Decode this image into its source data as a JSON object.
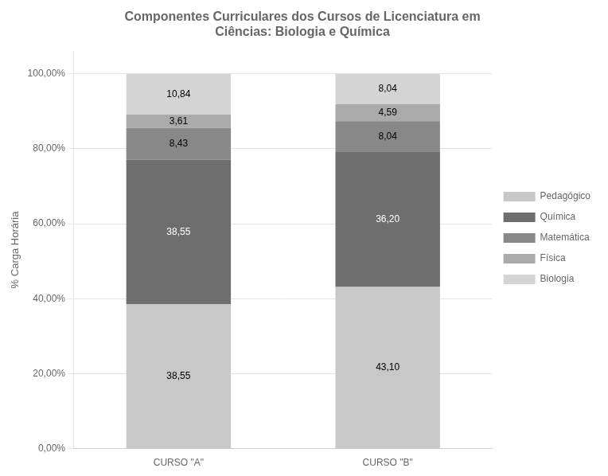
{
  "chart_data": {
    "type": "bar",
    "stacked": true,
    "title": "Componentes Curriculares dos Cursos de Licenciatura em\nCiências: Biologia e Química",
    "y_label": "% Carga Horária",
    "categories": [
      "CURSO \"A\"",
      "CURSO \"B\""
    ],
    "series": [
      {
        "name": "Pedagógico",
        "color": "#c8c8c8",
        "values": [
          38.55,
          43.1
        ],
        "value_labels": [
          "38,55",
          "43,10"
        ]
      },
      {
        "name": "Química",
        "color": "#6e6e6e",
        "values": [
          38.55,
          36.2
        ],
        "value_labels": [
          "38,55",
          "36,20"
        ]
      },
      {
        "name": "Matemática",
        "color": "#888888",
        "values": [
          8.43,
          8.04
        ],
        "value_labels": [
          "8,43",
          "8,04"
        ]
      },
      {
        "name": "Física",
        "color": "#aaaaaa",
        "values": [
          3.61,
          4.59
        ],
        "value_labels": [
          "3,61",
          "4,59"
        ]
      },
      {
        "name": "Biologia",
        "color": "#d4d4d4",
        "values": [
          10.84,
          8.04
        ],
        "value_labels": [
          "10,84",
          "8,04"
        ]
      }
    ],
    "ylim": [
      0,
      106
    ],
    "yticks": [
      {
        "value": 0,
        "label": "0,00%"
      },
      {
        "value": 20,
        "label": "20,00%"
      },
      {
        "value": 40,
        "label": "40,00%"
      },
      {
        "value": 60,
        "label": "60,00%"
      },
      {
        "value": 80,
        "label": "80,00%"
      },
      {
        "value": 100,
        "label": "100,00%"
      }
    ],
    "grid": true,
    "legend": "right",
    "data_labels": true
  }
}
